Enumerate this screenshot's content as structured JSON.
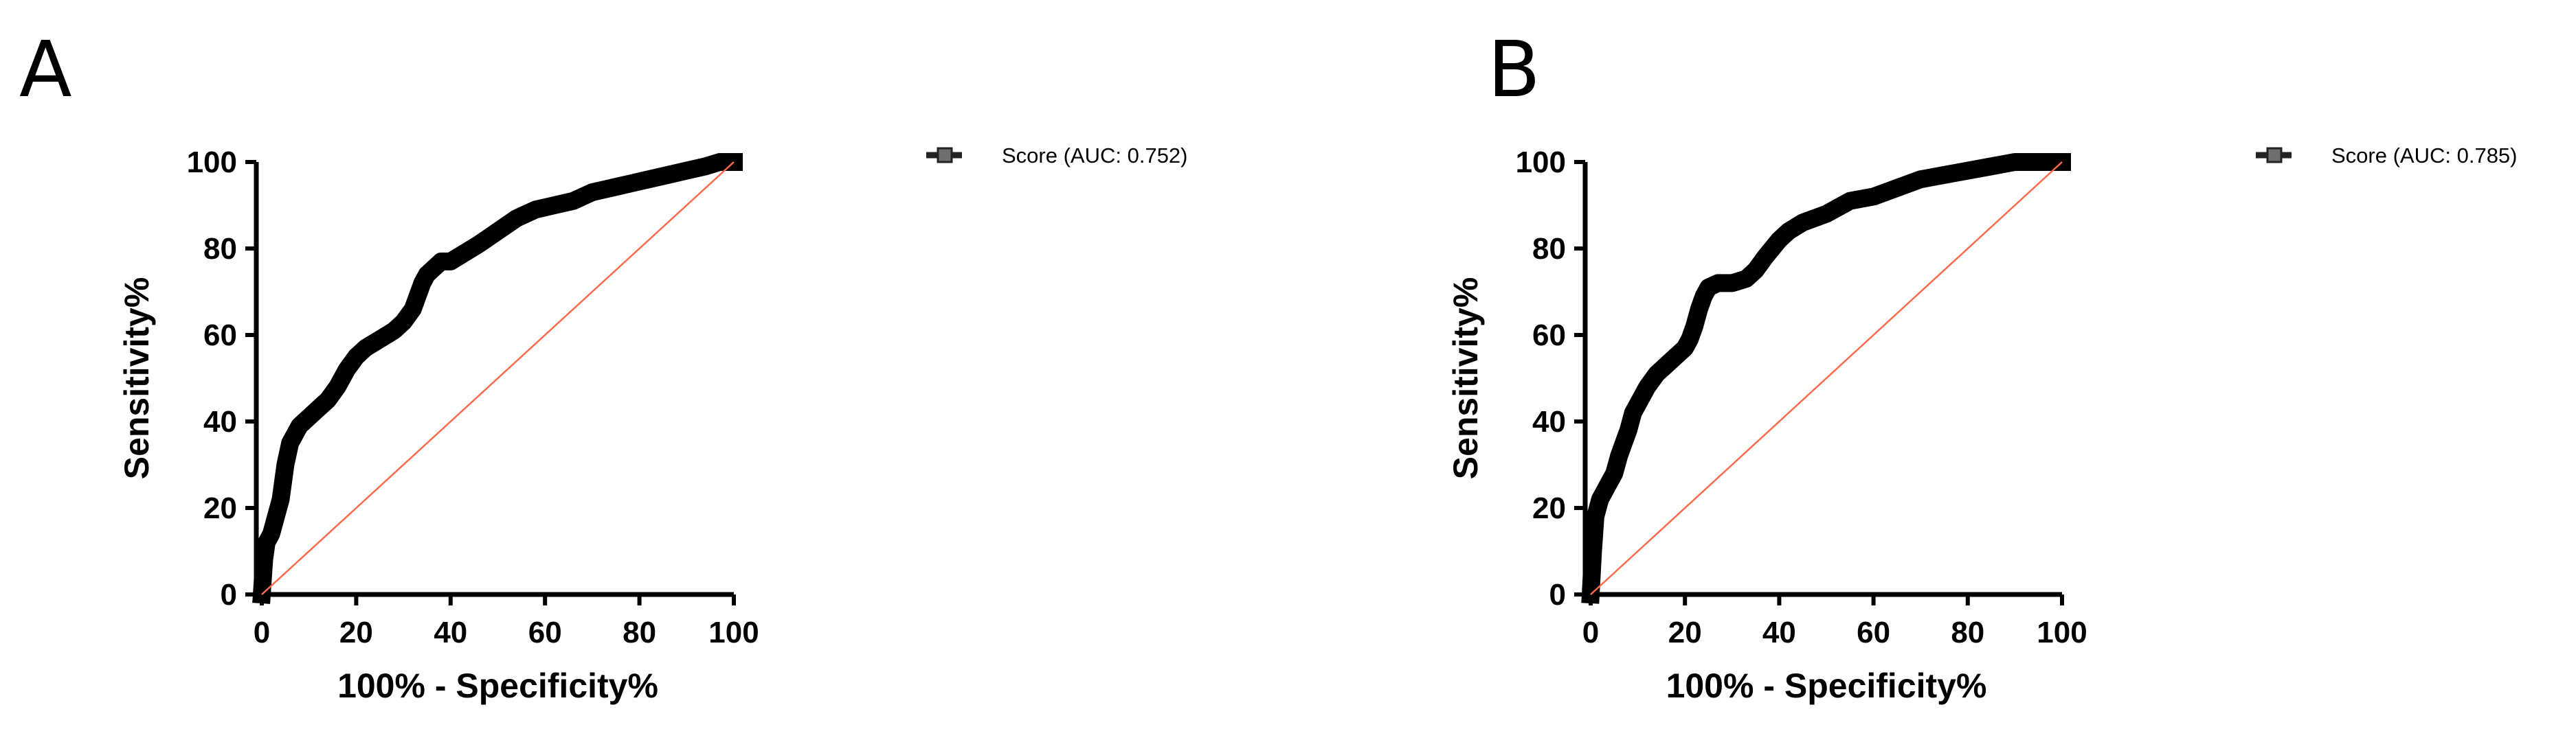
{
  "panels": [
    {
      "letter": "A"
    },
    {
      "letter": "B"
    }
  ],
  "chart_data": [
    {
      "type": "line",
      "xlabel": "100% - Specificity%",
      "ylabel": "Sensitivity%",
      "xlim": [
        0,
        100
      ],
      "ylim": [
        0,
        100
      ],
      "xticks": [
        "0",
        "20",
        "40",
        "60",
        "80",
        "100"
      ],
      "yticks": [
        "0",
        "20",
        "40",
        "60",
        "80",
        "100"
      ],
      "legend_position": "top-right",
      "grid": false,
      "series": [
        {
          "name": "Score",
          "legend_suffix": "(AUC: 0.752)",
          "color": "#000000",
          "x": [
            0,
            0.5,
            1,
            2,
            3,
            4,
            5,
            6,
            8,
            10,
            12,
            14,
            16,
            18,
            20,
            22,
            25,
            28,
            30,
            32,
            33,
            34,
            35,
            36,
            38,
            40,
            43,
            46,
            50,
            54,
            58,
            62,
            66,
            70,
            74,
            78,
            82,
            86,
            90,
            94,
            97,
            100
          ],
          "y": [
            0,
            8,
            12,
            14,
            18,
            22,
            30,
            35,
            39,
            41,
            43,
            45,
            48,
            52,
            55,
            57,
            59,
            61,
            63,
            66,
            69,
            72,
            74,
            75,
            77,
            77,
            79,
            81,
            84,
            87,
            89,
            90,
            91,
            93,
            94,
            95,
            96,
            97,
            98,
            99,
            100,
            100
          ]
        },
        {
          "name": "Reference line",
          "color": "#ff6a4a",
          "x": [
            0,
            100
          ],
          "y": [
            0,
            100
          ]
        }
      ]
    },
    {
      "type": "line",
      "xlabel": "100% - Specificity%",
      "ylabel": "Sensitivity%",
      "xlim": [
        0,
        100
      ],
      "ylim": [
        0,
        100
      ],
      "xticks": [
        "0",
        "20",
        "40",
        "60",
        "80",
        "100"
      ],
      "yticks": [
        "0",
        "20",
        "40",
        "60",
        "80",
        "100"
      ],
      "legend_position": "top-right",
      "grid": false,
      "series": [
        {
          "name": "Score",
          "legend_suffix": "(AUC: 0.785)",
          "color": "#000000",
          "x": [
            0,
            0.5,
            1,
            2,
            3,
            4,
            5,
            6,
            7,
            8,
            9,
            10,
            12,
            14,
            16,
            18,
            20,
            21,
            22,
            23,
            24,
            25,
            27,
            30,
            33,
            35,
            37,
            40,
            42,
            45,
            50,
            55,
            60,
            65,
            70,
            75,
            80,
            85,
            90,
            95,
            100
          ],
          "y": [
            0,
            10,
            18,
            22,
            24,
            26,
            28,
            32,
            35,
            38,
            42,
            44,
            48,
            51,
            53,
            55,
            57,
            59,
            62,
            66,
            69,
            71,
            72,
            72,
            73,
            75,
            78,
            82,
            84,
            86,
            88,
            91,
            92,
            94,
            96,
            97,
            98,
            99,
            100,
            100,
            100
          ]
        },
        {
          "name": "Reference line",
          "color": "#ff6a4a",
          "x": [
            0,
            100
          ],
          "y": [
            0,
            100
          ]
        }
      ]
    }
  ]
}
